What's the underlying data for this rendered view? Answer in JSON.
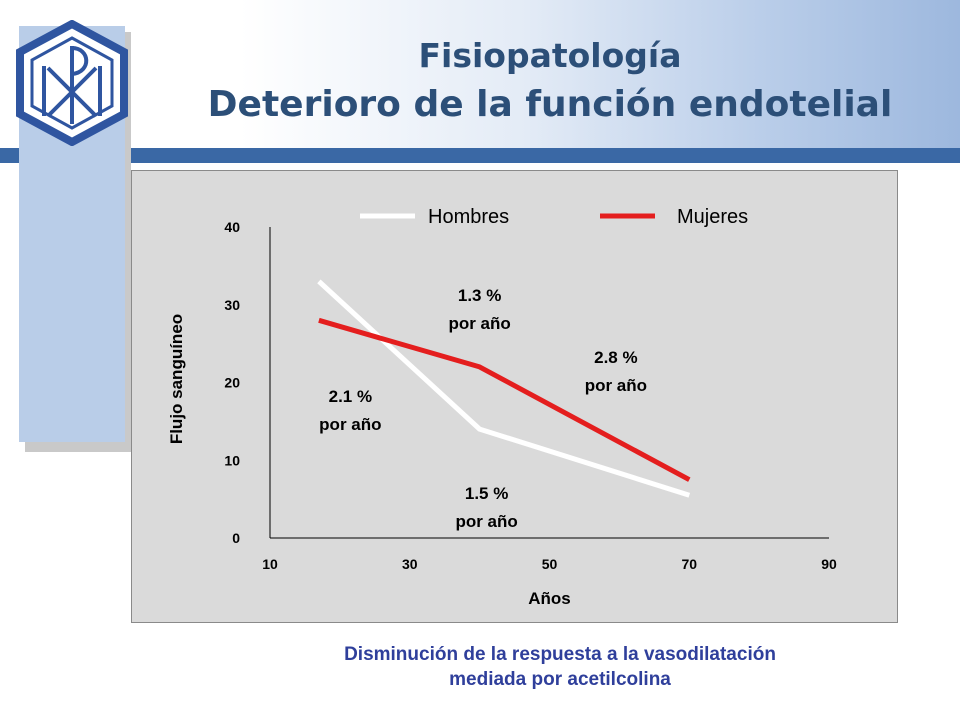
{
  "slide": {
    "title_line1": "Fisiopatología",
    "title_line2": "Deterioro de la función endotelial",
    "caption_line1": "Disminución de la respuesta a la vasodilatación",
    "caption_line2": "mediada por acetilcolina",
    "colors": {
      "title": "#2c4f78",
      "caption": "#2f3f9b",
      "header_bar": "#3a68a5",
      "chart_background": "#dadada",
      "logo_blue": "#2f55a0"
    },
    "logo_icon": "chi-rho-hexagon-logo"
  },
  "chart_data": {
    "type": "line",
    "xlabel": "Años",
    "ylabel": "Flujo sanguíneo",
    "xlim": [
      10,
      90
    ],
    "ylim": [
      0,
      40
    ],
    "xticks": [
      10,
      30,
      50,
      70,
      90
    ],
    "yticks": [
      0,
      10,
      20,
      30,
      40
    ],
    "grid": false,
    "legend_position": "top",
    "series": [
      {
        "name": "Hombres",
        "color": "#ffffff",
        "x": [
          17,
          40,
          70
        ],
        "y": [
          33,
          14,
          5.5
        ]
      },
      {
        "name": "Mujeres",
        "color": "#e41e1e",
        "x": [
          17,
          40,
          70
        ],
        "y": [
          28,
          22,
          7.5
        ]
      }
    ],
    "annotations": [
      {
        "line1": "1.3 %",
        "line2": "por año",
        "x": 40,
        "y": 30.5
      },
      {
        "line1": "2.8 %",
        "line2": "por año",
        "x": 59.5,
        "y": 22.5
      },
      {
        "line1": "2.1 %",
        "line2": "por año",
        "x": 21.5,
        "y": 17.5
      },
      {
        "line1": "1.5 %",
        "line2": "por año",
        "x": 41,
        "y": 5
      }
    ]
  }
}
